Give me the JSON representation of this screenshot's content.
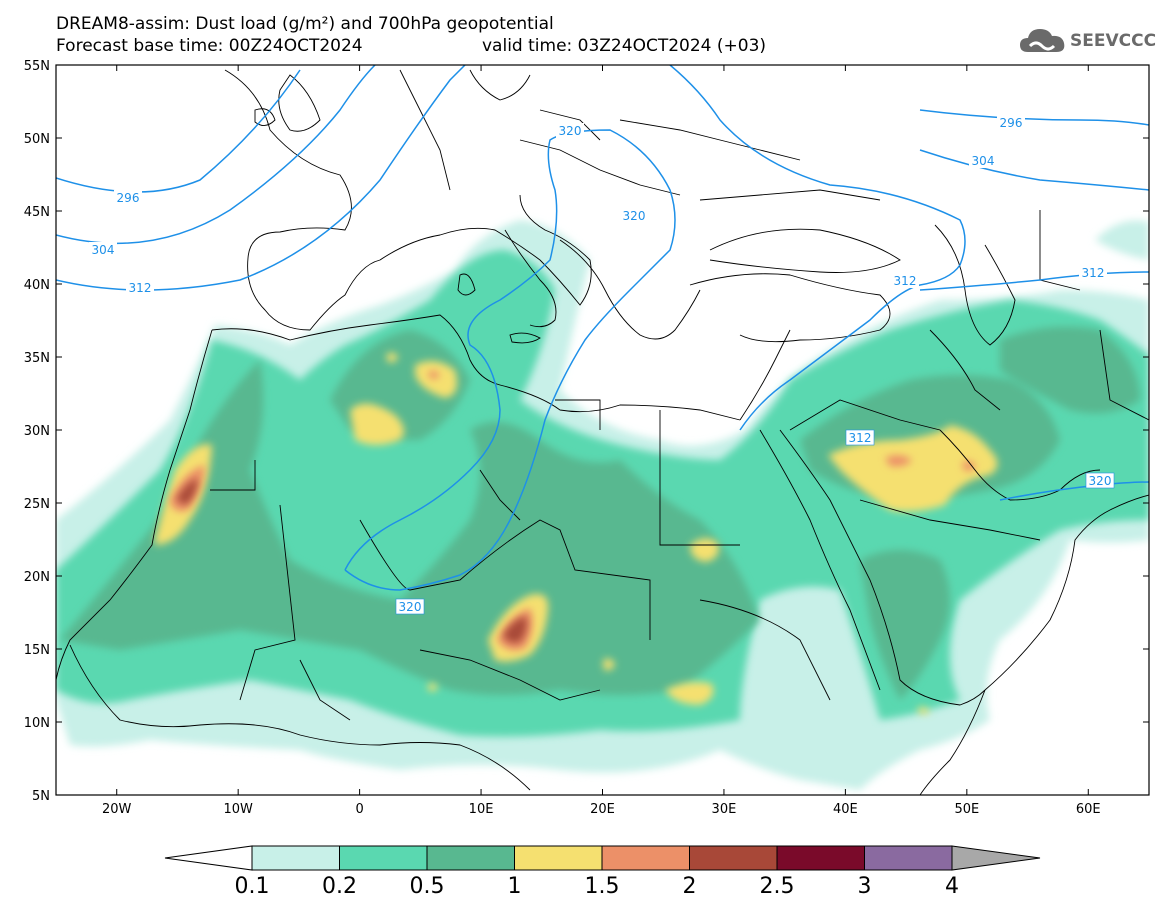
{
  "header": {
    "title_line1": "DREAM8-assim: Dust load (g/m²) and 700hPa geopotential",
    "title_line2": "Forecast base time: 00Z24OCT2024",
    "valid_time": "valid time: 03Z24OCT2024 (+03)"
  },
  "logo": {
    "text": "SEEVCCC",
    "icon": "cloud-logo-icon"
  },
  "map": {
    "lon_range": [
      -25,
      65
    ],
    "lat_range": [
      5,
      55
    ],
    "lat_ticks": [
      "55N",
      "50N",
      "45N",
      "40N",
      "35N",
      "30N",
      "25N",
      "20N",
      "15N",
      "10N",
      "5N"
    ],
    "lon_ticks": [
      "20W",
      "10W",
      "0",
      "10E",
      "20E",
      "30E",
      "40E",
      "50E",
      "60E"
    ],
    "contour_color": "#1e90e8",
    "contour_labels": [
      "296",
      "304",
      "312",
      "320",
      "320",
      "320",
      "296",
      "304",
      "312",
      "312",
      "312",
      "320"
    ]
  },
  "colorbar": {
    "labels": [
      "0.1",
      "0.2",
      "0.5",
      "1",
      "1.5",
      "2",
      "2.5",
      "3",
      "4"
    ],
    "colors": [
      "#c8f0e8",
      "#5ad8b0",
      "#58b890",
      "#f5e070",
      "#ec9068",
      "#a84838",
      "#7a0a2a",
      "#8a6aa0",
      "#a8a8a8"
    ]
  },
  "chart_data": {
    "type": "heatmap",
    "title": "DREAM8-assim: Dust load (g/m²) and 700hPa geopotential",
    "x_ticks": [
      "20W",
      "10W",
      "0",
      "10E",
      "20E",
      "30E",
      "40E",
      "50E",
      "60E"
    ],
    "y_ticks": [
      "55N",
      "50N",
      "45N",
      "40N",
      "35N",
      "30N",
      "25N",
      "20N",
      "15N",
      "10N",
      "5N"
    ],
    "xlim": [
      -25,
      65
    ],
    "ylim": [
      5,
      55
    ],
    "levels": [
      0.1,
      0.2,
      0.5,
      1,
      1.5,
      2,
      2.5,
      3,
      4
    ],
    "contour_levels": [
      296,
      304,
      312,
      320
    ]
  }
}
